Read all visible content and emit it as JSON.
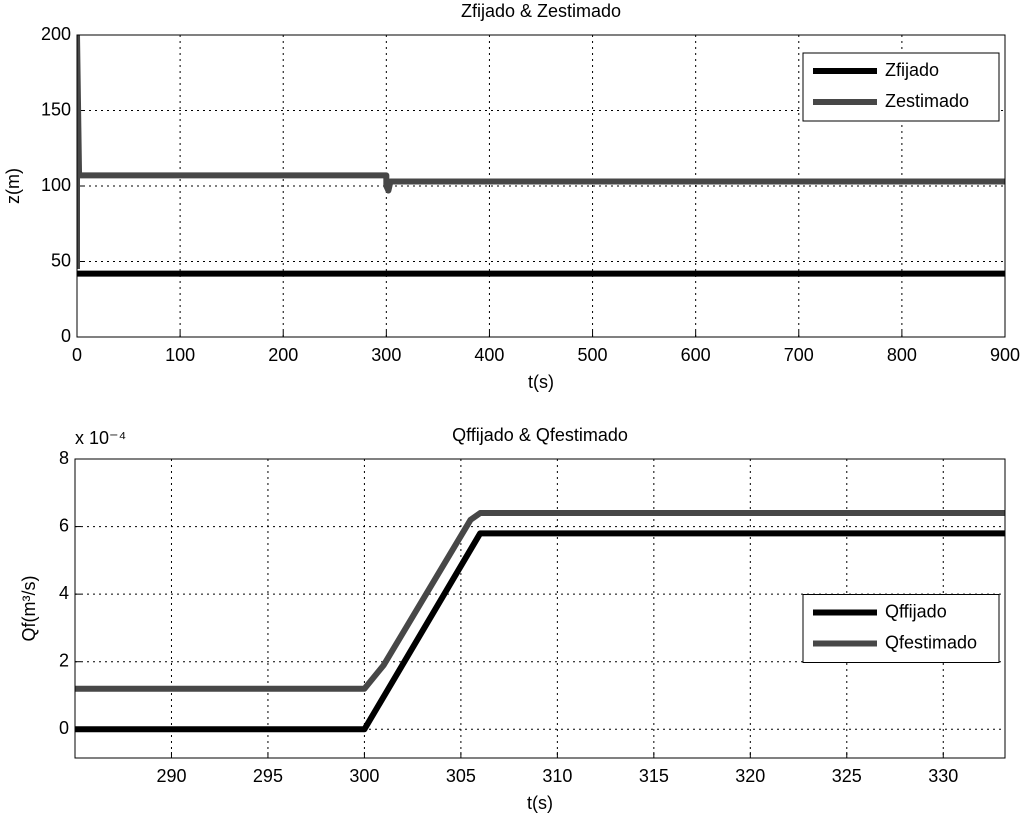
{
  "chart_data": [
    {
      "type": "line",
      "title": "Zfijado & Zestimado",
      "xlabel": "t(s)",
      "ylabel": "z(m)",
      "xlim": [
        0,
        900
      ],
      "ylim": [
        0,
        200
      ],
      "xticks": [
        0,
        100,
        200,
        300,
        400,
        500,
        600,
        700,
        800,
        900
      ],
      "yticks": [
        0,
        50,
        100,
        150,
        200
      ],
      "grid": true,
      "legend": "upper right",
      "series": [
        {
          "name": "Zfijado",
          "color": "#000000",
          "x": [
            0,
            900
          ],
          "values": [
            42,
            42
          ]
        },
        {
          "name": "Zestimado",
          "color": "#474747",
          "x": [
            0,
            0,
            2,
            300,
            300,
            302,
            304,
            900
          ],
          "values": [
            45,
            200,
            107,
            107,
            100,
            97,
            103,
            103
          ]
        }
      ]
    },
    {
      "type": "line",
      "title": "Qffijado & Qfestimado",
      "xlabel": "t(s)",
      "ylabel": "Qf(m³/s)",
      "y_multiplier": "x 10⁻⁴",
      "xlim": [
        285,
        333.2
      ],
      "ylim": [
        -0.85,
        8
      ],
      "xticks": [
        290,
        295,
        300,
        305,
        310,
        315,
        320,
        325,
        330
      ],
      "yticks": [
        0,
        2,
        4,
        6,
        8
      ],
      "grid": true,
      "legend": "center right",
      "series": [
        {
          "name": "Qffijado",
          "color": "#000000",
          "x": [
            285,
            300,
            306,
            333.2
          ],
          "values": [
            0,
            0,
            5.8,
            5.8
          ]
        },
        {
          "name": "Qfestimado",
          "color": "#474747",
          "x": [
            285,
            300,
            301,
            305.5,
            306,
            333.2
          ],
          "values": [
            1.2,
            1.2,
            1.9,
            6.2,
            6.4,
            6.4
          ]
        }
      ]
    }
  ]
}
